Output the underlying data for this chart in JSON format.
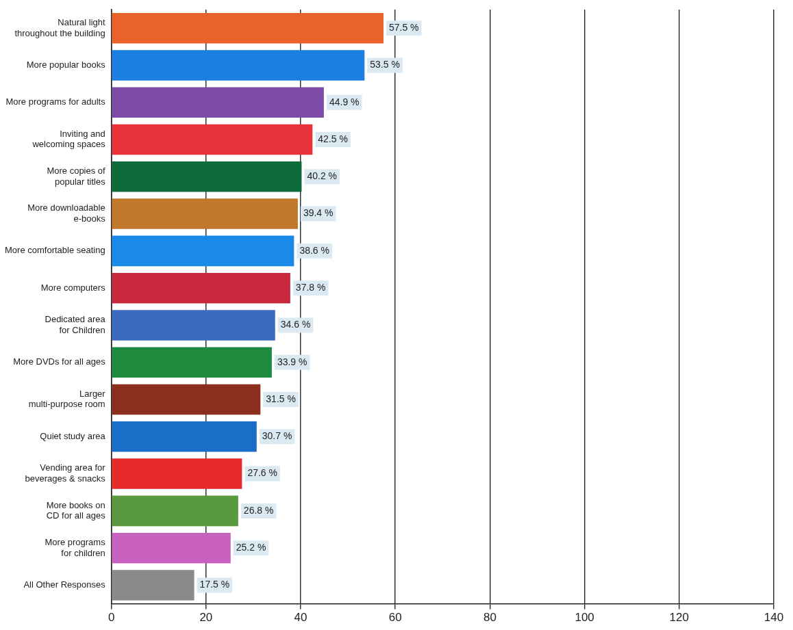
{
  "chart_data": {
    "type": "bar",
    "orientation": "horizontal",
    "categories": [
      "Natural light\nthroughout the building",
      "More popular books",
      "More programs for adults",
      "Inviting and\nwelcoming spaces",
      "More copies of\npopular titles",
      "More downloadable\ne-books",
      "More comfortable seating",
      "More computers",
      "Dedicated area\nfor Children",
      "More DVDs for all ages",
      "Larger\nmulti-purpose room",
      "Quiet study area",
      "Vending area for\nbeverages & snacks",
      "More books on\nCD for all ages",
      "More programs\nfor children",
      "All Other Responses"
    ],
    "values": [
      57.5,
      53.5,
      44.9,
      42.5,
      40.2,
      39.4,
      38.6,
      37.8,
      34.6,
      33.9,
      31.5,
      30.7,
      27.6,
      26.8,
      25.2,
      17.5
    ],
    "value_labels": [
      "57.5 %",
      "53.5 %",
      "44.9 %",
      "42.5 %",
      "40.2 %",
      "39.4 %",
      "38.6 %",
      "37.8 %",
      "34.6 %",
      "33.9 %",
      "31.5 %",
      "30.7 %",
      "27.6 %",
      "26.8 %",
      "25.2 %",
      "17.5 %"
    ],
    "colors": [
      "#e8622a",
      "#1a7fe0",
      "#7d4aa8",
      "#e8323a",
      "#0e6b3a",
      "#c0782a",
      "#1a8ae8",
      "#c8283c",
      "#3a6ac0",
      "#1e8a3e",
      "#8a2e1e",
      "#1a6ec8",
      "#e82a2a",
      "#5a9a3e",
      "#c860c0",
      "#8a8a8a"
    ],
    "xlim": [
      0,
      140
    ],
    "xticks": [
      0,
      20,
      40,
      60,
      80,
      100,
      120,
      140
    ],
    "grid": "x",
    "legend": false
  }
}
